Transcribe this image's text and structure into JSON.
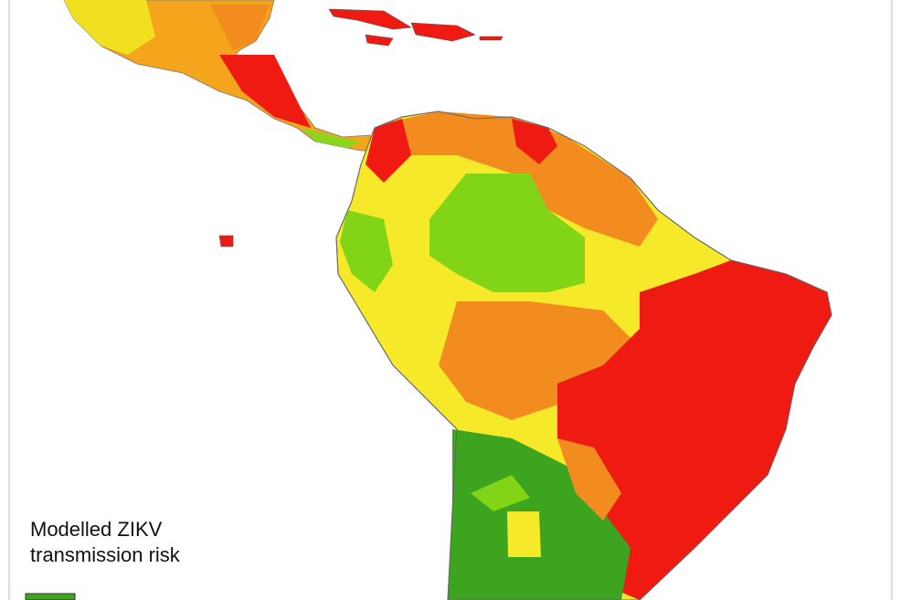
{
  "legend": {
    "title_lines": [
      "Modelled ZIKV",
      "transmission risk"
    ]
  }
}
